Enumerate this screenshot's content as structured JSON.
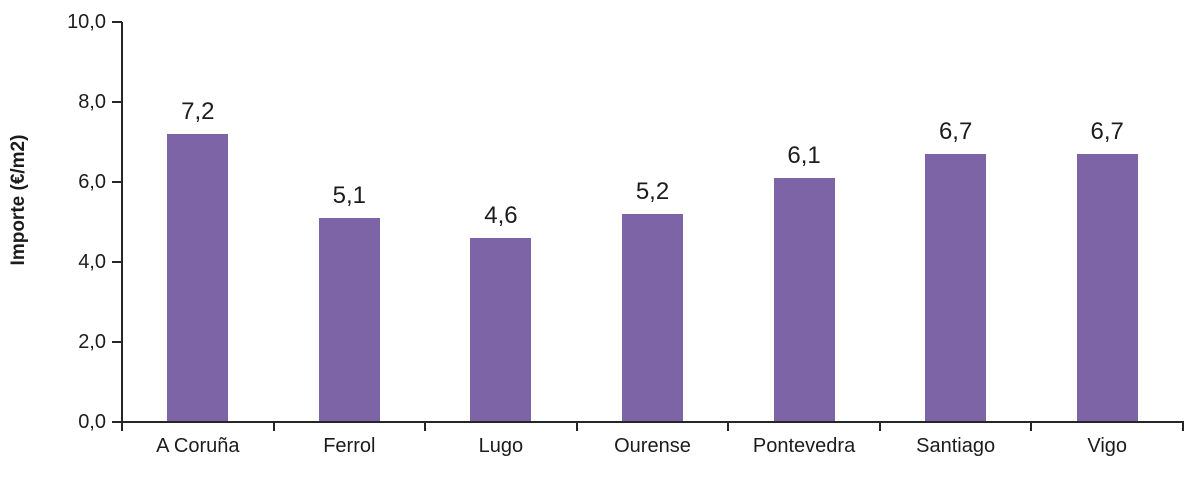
{
  "chart_data": {
    "type": "bar",
    "title": "",
    "categories": [
      "A Coruña",
      "Ferrol",
      "Lugo",
      "Ourense",
      "Pontevedra",
      "Santiago",
      "Vigo"
    ],
    "values": [
      7.2,
      5.1,
      4.6,
      5.2,
      6.1,
      6.7,
      6.7
    ],
    "value_labels": [
      "7,2",
      "5,1",
      "4,6",
      "5,2",
      "6,1",
      "6,7",
      "6,7"
    ],
    "xlabel": "",
    "ylabel": "Importe (€/m2)",
    "ylim": [
      0,
      10
    ],
    "yticks": [
      0,
      2,
      4,
      6,
      8,
      10
    ],
    "ytick_labels": [
      "0,0",
      "2,0",
      "4,0",
      "6,0",
      "8,0",
      "10,0"
    ],
    "grid": false,
    "legend": false,
    "bar_color": "#7C64A6",
    "axis_color": "#262626",
    "text_color": "#1C1C1C"
  }
}
